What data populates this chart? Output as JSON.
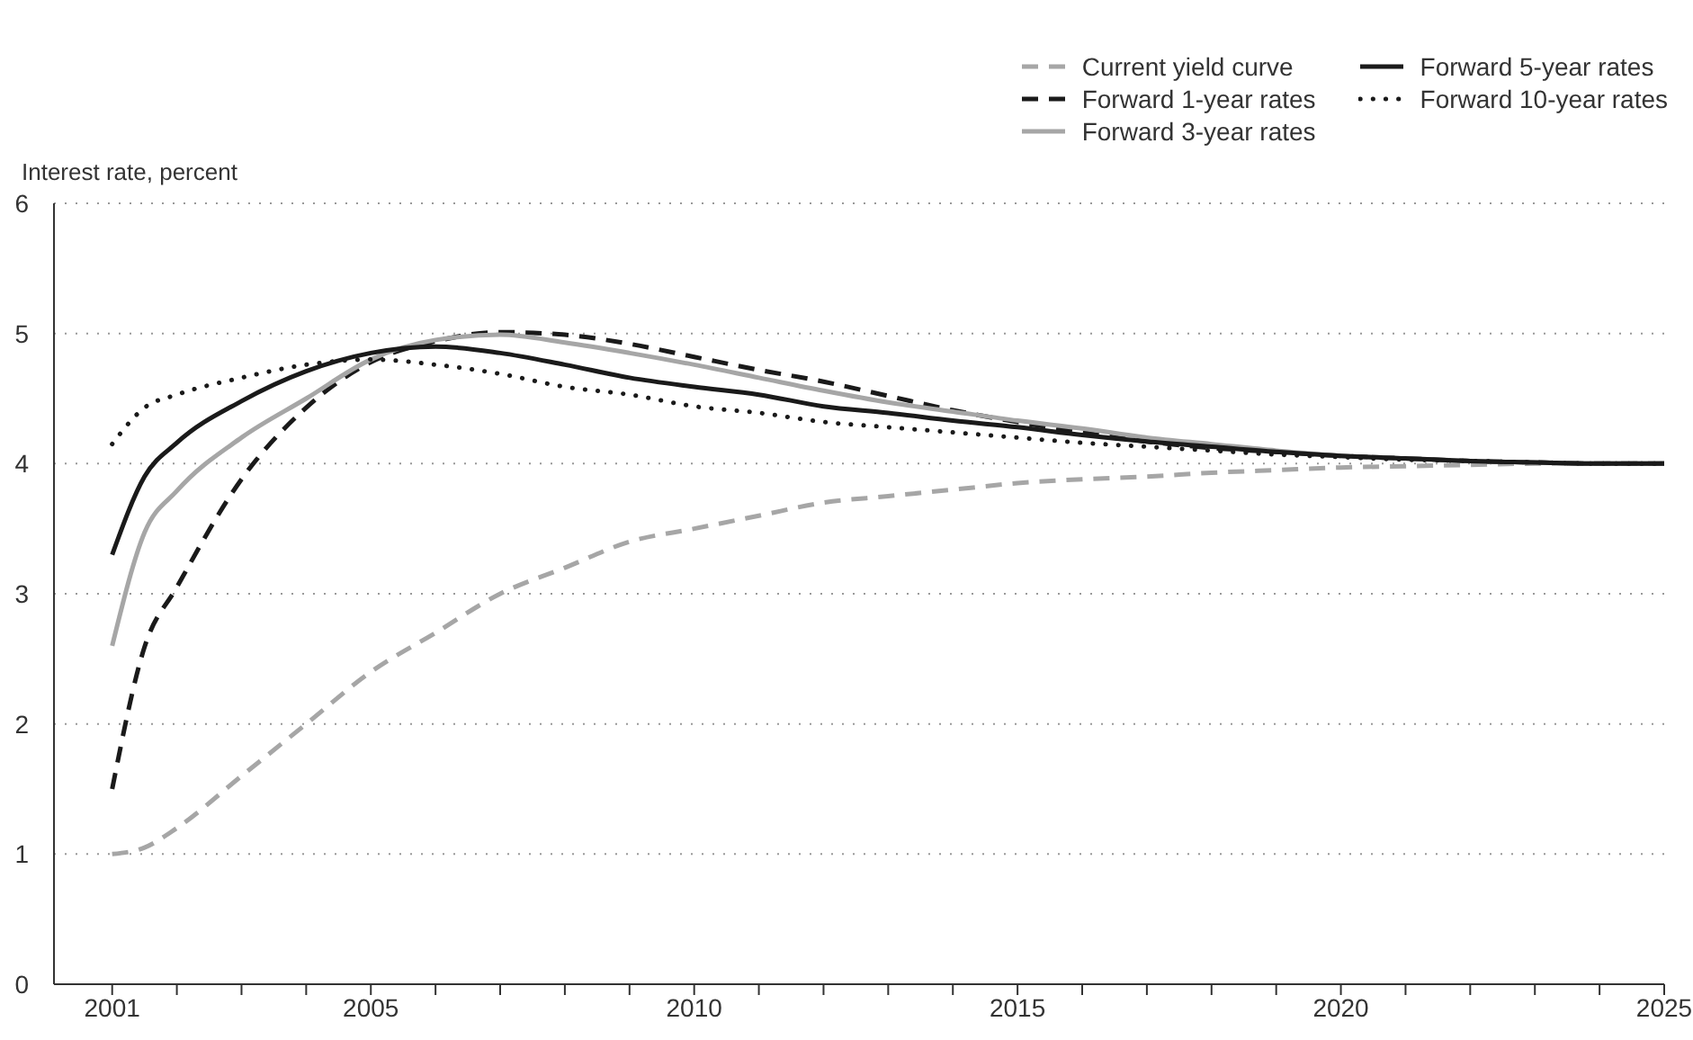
{
  "chart_data": {
    "type": "line",
    "ylabel": "Interest rate, percent",
    "xlim": [
      2000.1,
      2025
    ],
    "xticks": [
      2001,
      {
        "value": 2002,
        "label": null
      },
      {
        "value": 2003,
        "label": null
      },
      {
        "value": 2004,
        "label": null
      },
      2005,
      {
        "value": 2006,
        "label": null
      },
      {
        "value": 2007,
        "label": null
      },
      {
        "value": 2008,
        "label": null
      },
      {
        "value": 2009,
        "label": null
      },
      2010,
      {
        "value": 2011,
        "label": null
      },
      {
        "value": 2012,
        "label": null
      },
      {
        "value": 2013,
        "label": null
      },
      {
        "value": 2014,
        "label": null
      },
      2015,
      {
        "value": 2016,
        "label": null
      },
      {
        "value": 2017,
        "label": null
      },
      {
        "value": 2018,
        "label": null
      },
      {
        "value": 2019,
        "label": null
      },
      2020,
      {
        "value": 2021,
        "label": null
      },
      {
        "value": 2022,
        "label": null
      },
      {
        "value": 2023,
        "label": null
      },
      {
        "value": 2024,
        "label": null
      },
      2025
    ],
    "ylim": [
      0,
      6
    ],
    "yticks": [
      0,
      1,
      2,
      3,
      4,
      5,
      6
    ],
    "grid": "y",
    "legend": "top right",
    "marker": "none",
    "series": [
      {
        "name": "Current yield curve",
        "color": "#a6a6a6",
        "line_style": "dashed",
        "x": [
          2001,
          2001.5,
          2002,
          2003,
          2004,
          2005,
          2006,
          2007,
          2008,
          2009,
          2010,
          2011,
          2012,
          2013,
          2014,
          2015,
          2016,
          2017,
          2018,
          2019,
          2020,
          2021,
          2022,
          2023,
          2024,
          2025
        ],
        "values": [
          1.0,
          1.05,
          1.2,
          1.6,
          2.0,
          2.4,
          2.7,
          3.0,
          3.2,
          3.4,
          3.5,
          3.6,
          3.7,
          3.75,
          3.8,
          3.85,
          3.88,
          3.9,
          3.93,
          3.95,
          3.97,
          3.98,
          3.99,
          4.0,
          4.0,
          4.0
        ]
      },
      {
        "name": "Forward 1-year rates",
        "color": "#1a1a1a",
        "line_style": "dashed",
        "x": [
          2001,
          2001.5,
          2002,
          2003,
          2004,
          2005,
          2006,
          2007,
          2008,
          2009,
          2010,
          2011,
          2012,
          2013,
          2014,
          2015,
          2016,
          2017,
          2018,
          2019,
          2020,
          2021,
          2022,
          2023,
          2024,
          2025
        ],
        "values": [
          1.5,
          2.59,
          3.05,
          3.88,
          4.43,
          4.78,
          4.94,
          5.01,
          4.99,
          4.92,
          4.82,
          4.72,
          4.63,
          4.52,
          4.41,
          4.32,
          4.24,
          4.17,
          4.12,
          4.09,
          4.06,
          4.04,
          4.02,
          4.01,
          4.0,
          4.0
        ]
      },
      {
        "name": "Forward 3-year rates",
        "color": "#a6a6a6",
        "line_style": "solid",
        "x": [
          2001,
          2001.5,
          2002,
          2003,
          2004,
          2005,
          2006,
          2007,
          2008,
          2009,
          2010,
          2011,
          2012,
          2013,
          2014,
          2015,
          2016,
          2017,
          2018,
          2019,
          2020,
          2021,
          2022,
          2023,
          2024,
          2025
        ],
        "values": [
          2.6,
          3.47,
          3.79,
          4.2,
          4.5,
          4.8,
          4.95,
          4.99,
          4.93,
          4.85,
          4.76,
          4.66,
          4.56,
          4.47,
          4.4,
          4.33,
          4.27,
          4.2,
          4.15,
          4.1,
          4.06,
          4.04,
          4.02,
          4.01,
          4.0,
          4.0
        ]
      },
      {
        "name": "Forward 5-year rates",
        "color": "#1a1a1a",
        "line_style": "solid",
        "x": [
          2001,
          2001.5,
          2002,
          2003,
          2004,
          2005,
          2006,
          2007,
          2008,
          2009,
          2010,
          2011,
          2012,
          2013,
          2014,
          2015,
          2016,
          2017,
          2018,
          2019,
          2020,
          2021,
          2022,
          2023,
          2024,
          2025
        ],
        "values": [
          3.3,
          3.9,
          4.16,
          4.48,
          4.71,
          4.85,
          4.9,
          4.85,
          4.76,
          4.66,
          4.59,
          4.53,
          4.44,
          4.39,
          4.33,
          4.28,
          4.22,
          4.17,
          4.13,
          4.09,
          4.06,
          4.04,
          4.02,
          4.01,
          4.0,
          4.0
        ]
      },
      {
        "name": "Forward 10-year rates",
        "color": "#1a1a1a",
        "line_style": "dotted",
        "x": [
          2001,
          2001.5,
          2002,
          2003,
          2004,
          2005,
          2006,
          2007,
          2008,
          2009,
          2010,
          2011,
          2012,
          2013,
          2014,
          2015,
          2016,
          2017,
          2018,
          2019,
          2020,
          2021,
          2022,
          2023,
          2024,
          2025
        ],
        "values": [
          4.15,
          4.43,
          4.53,
          4.66,
          4.76,
          4.8,
          4.76,
          4.69,
          4.59,
          4.53,
          4.44,
          4.39,
          4.32,
          4.28,
          4.24,
          4.2,
          4.16,
          4.13,
          4.1,
          4.07,
          4.05,
          4.03,
          4.02,
          4.01,
          4.0,
          4.0
        ]
      }
    ]
  }
}
